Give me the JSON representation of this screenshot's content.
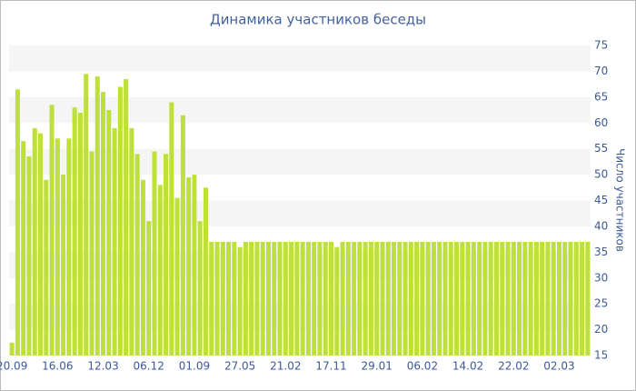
{
  "chart_data": {
    "type": "bar",
    "title": "Динамика участников беседы",
    "y_axis_label": "Число участников",
    "color": "#bde03a",
    "categories": [
      "20.09",
      null,
      null,
      null,
      null,
      null,
      null,
      null,
      "16.06",
      null,
      null,
      null,
      null,
      null,
      null,
      null,
      "12.03",
      null,
      null,
      null,
      null,
      null,
      null,
      null,
      "06.12",
      null,
      null,
      null,
      null,
      null,
      null,
      null,
      "01.09",
      null,
      null,
      null,
      null,
      null,
      null,
      null,
      "27.05",
      null,
      null,
      null,
      null,
      null,
      null,
      null,
      "21.02",
      null,
      null,
      null,
      null,
      null,
      null,
      null,
      "17.11",
      null,
      null,
      null,
      null,
      null,
      null,
      null,
      "29.01",
      null,
      null,
      null,
      null,
      null,
      null,
      null,
      "06.02",
      null,
      null,
      null,
      null,
      null,
      null,
      null,
      "14.02",
      null,
      null,
      null,
      null,
      null,
      null,
      null,
      "22.02",
      null,
      null,
      null,
      null,
      null,
      null,
      null,
      "02.03",
      null,
      null,
      null,
      null,
      null
    ],
    "values": [
      17.5,
      66.5,
      56.5,
      53.5,
      59,
      58,
      49,
      63.5,
      57,
      50,
      57,
      63,
      62,
      69.5,
      54.5,
      69,
      66,
      62.5,
      59,
      67,
      68.5,
      59,
      54,
      49,
      41,
      54.5,
      48,
      54,
      64,
      45.5,
      61.5,
      49.5,
      50,
      41,
      47.5,
      37,
      37,
      37,
      37,
      37,
      36,
      37,
      37,
      37,
      37,
      37,
      37,
      37,
      37,
      37,
      37,
      37,
      37,
      37,
      37,
      37,
      37,
      36,
      37,
      37,
      37,
      37,
      37,
      37,
      37,
      37,
      37,
      37,
      37,
      37,
      37,
      37,
      37,
      37,
      37,
      37,
      37,
      37,
      37,
      37,
      37,
      37,
      37,
      37,
      37,
      37,
      37,
      37,
      37,
      37,
      37,
      37,
      37,
      37,
      37,
      37,
      37,
      37,
      37,
      37,
      37,
      37
    ],
    "ylim": [
      15,
      75
    ],
    "yticks": [
      15,
      20,
      25,
      30,
      35,
      40,
      45,
      50,
      55,
      60,
      65,
      70,
      75
    ],
    "grid": true
  }
}
